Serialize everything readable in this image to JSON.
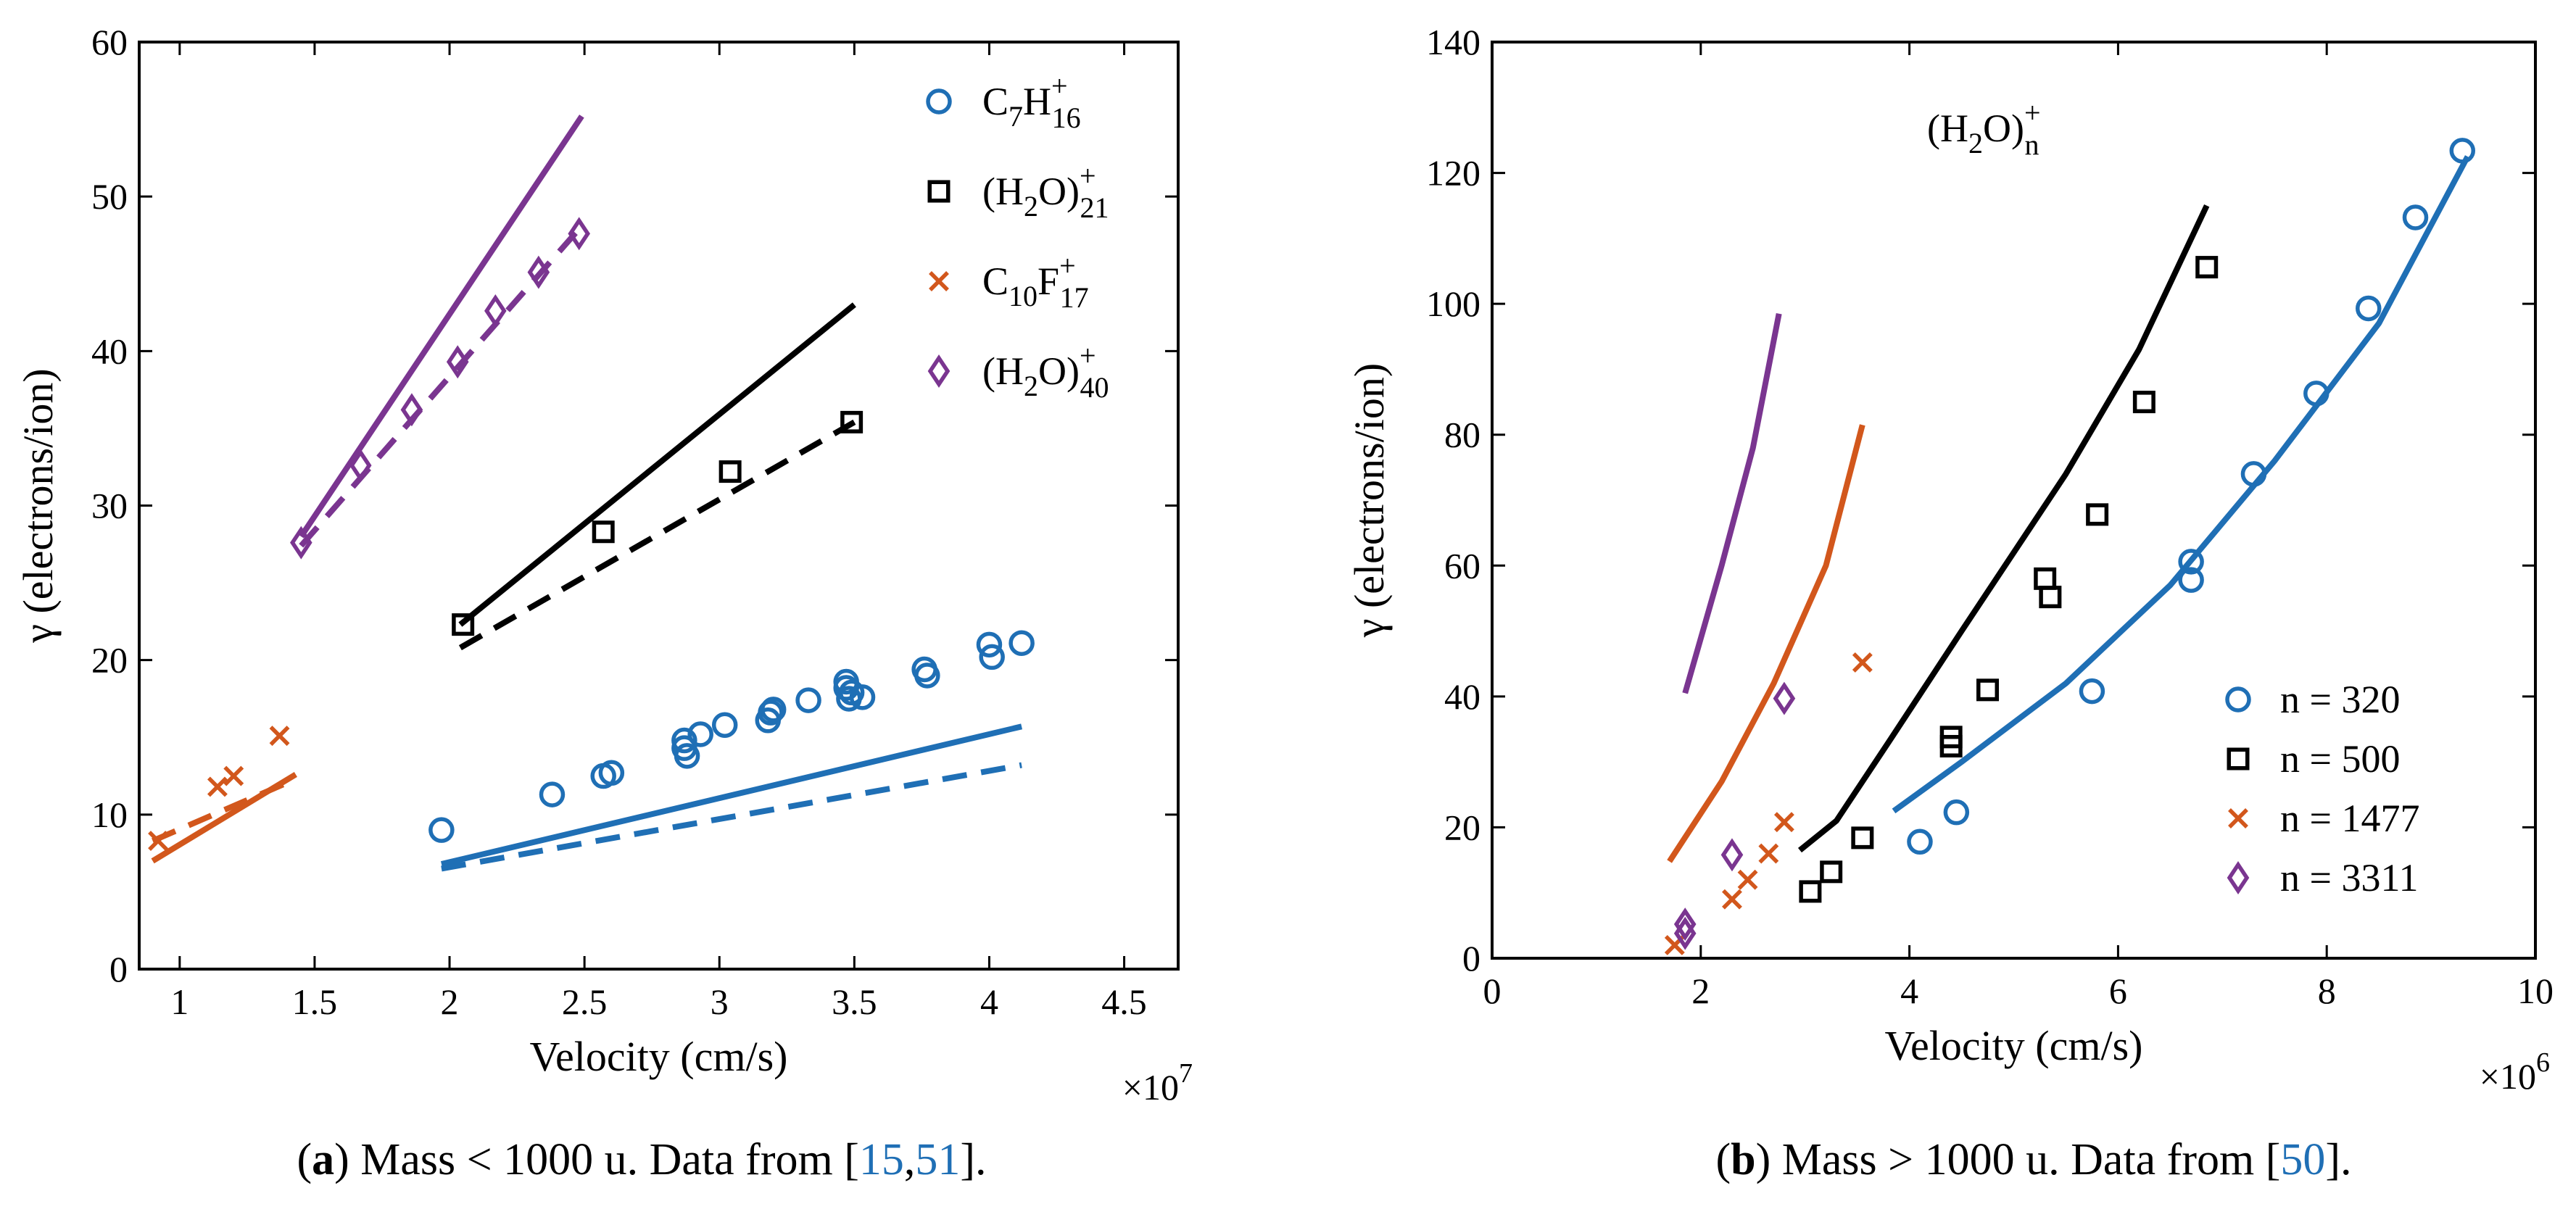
{
  "chart_data": [
    {
      "type": "scatter",
      "xlabel": "Velocity (cm/s)",
      "ylabel": "γ (electrons/ion)",
      "x_multiplier": "×10",
      "x_multiplier_exp": "7",
      "xlim": [
        0.85,
        4.7
      ],
      "ylim": [
        0,
        60
      ],
      "xticks": [
        1,
        1.5,
        2,
        2.5,
        3,
        3.5,
        4,
        4.5
      ],
      "xtick_labels": [
        "1",
        "1.5",
        "2",
        "2.5",
        "3",
        "3.5",
        "4",
        "4.5"
      ],
      "yticks": [
        0,
        10,
        20,
        30,
        40,
        50,
        60
      ],
      "ytick_labels": [
        "0",
        "10",
        "20",
        "30",
        "40",
        "50",
        "60"
      ],
      "caption": {
        "letter": "a",
        "text": " Mass < 1000 u. Data from [",
        "ref1": "15",
        "sep": ",",
        "ref2": "51",
        "end": "]."
      },
      "legend": [
        {
          "base": "C",
          "sub1": "7",
          "mid": "H",
          "sup": "+",
          "sub2": "16",
          "marker": "circle",
          "color": "#1f6fb5"
        },
        {
          "base": "(H",
          "sub1": "2",
          "mid": "O)",
          "sup": "+",
          "sub2": "21",
          "marker": "square",
          "color": "#000000"
        },
        {
          "base": "C",
          "sub1": "10",
          "mid": "F",
          "sup": "+",
          "sub2": "17",
          "marker": "x",
          "color": "#d2571c"
        },
        {
          "base": "(H",
          "sub1": "2",
          "mid": "O)",
          "sup": "+",
          "sub2": "40",
          "marker": "diamond",
          "color": "#7a3590"
        }
      ],
      "series": [
        {
          "name": "C7H16+",
          "marker": "circle",
          "color": "#1f6fb5",
          "points": [
            [
              1.97,
              9.0
            ],
            [
              2.38,
              11.3
            ],
            [
              2.57,
              12.5
            ],
            [
              2.6,
              12.7
            ],
            [
              2.87,
              14.3
            ],
            [
              2.87,
              14.8
            ],
            [
              2.88,
              13.8
            ],
            [
              2.93,
              15.2
            ],
            [
              3.02,
              15.8
            ],
            [
              3.18,
              16.1
            ],
            [
              3.19,
              16.6
            ],
            [
              3.2,
              16.8
            ],
            [
              3.33,
              17.4
            ],
            [
              3.47,
              18.2
            ],
            [
              3.47,
              18.6
            ],
            [
              3.48,
              17.5
            ],
            [
              3.49,
              17.9
            ],
            [
              3.53,
              17.6
            ],
            [
              3.76,
              19.4
            ],
            [
              3.77,
              19.0
            ],
            [
              4.0,
              21.0
            ],
            [
              4.01,
              20.2
            ],
            [
              4.12,
              21.1
            ]
          ]
        },
        {
          "name": "(H2O)21+",
          "marker": "square",
          "color": "#000000",
          "points": [
            [
              2.05,
              22.3
            ],
            [
              2.57,
              28.3
            ],
            [
              3.04,
              32.2
            ],
            [
              3.49,
              35.4
            ]
          ]
        },
        {
          "name": "C10F17+",
          "marker": "x",
          "color": "#d2571c",
          "points": [
            [
              0.92,
              8.3
            ],
            [
              1.14,
              11.8
            ],
            [
              1.2,
              12.5
            ],
            [
              1.37,
              15.1
            ]
          ]
        },
        {
          "name": "(H2O)40+",
          "marker": "diamond",
          "color": "#7a3590",
          "points": [
            [
              1.45,
              27.6
            ],
            [
              1.67,
              32.6
            ],
            [
              1.86,
              36.2
            ],
            [
              2.03,
              39.3
            ],
            [
              2.17,
              42.6
            ],
            [
              2.33,
              45.1
            ],
            [
              2.48,
              47.6
            ]
          ]
        }
      ],
      "lines": [
        {
          "color": "#1f6fb5",
          "dash": false,
          "points": [
            [
              1.97,
              6.8
            ],
            [
              4.12,
              15.7
            ]
          ]
        },
        {
          "color": "#1f6fb5",
          "dash": true,
          "points": [
            [
              1.97,
              6.5
            ],
            [
              4.12,
              13.2
            ]
          ]
        },
        {
          "color": "#000000",
          "dash": false,
          "points": [
            [
              2.04,
              22.3
            ],
            [
              3.5,
              43.0
            ]
          ]
        },
        {
          "color": "#000000",
          "dash": true,
          "points": [
            [
              2.04,
              20.8
            ],
            [
              3.5,
              35.4
            ]
          ]
        },
        {
          "color": "#d2571c",
          "dash": false,
          "points": [
            [
              0.9,
              7.0
            ],
            [
              1.43,
              12.6
            ]
          ]
        },
        {
          "color": "#d2571c",
          "dash": true,
          "points": [
            [
              0.9,
              8.3
            ],
            [
              1.43,
              12.3
            ]
          ]
        },
        {
          "color": "#7a3590",
          "dash": false,
          "points": [
            [
              1.45,
              28.0
            ],
            [
              2.49,
              55.2
            ]
          ]
        },
        {
          "color": "#7a3590",
          "dash": true,
          "points": [
            [
              1.45,
              27.4
            ],
            [
              2.49,
              48.1
            ]
          ]
        }
      ]
    },
    {
      "type": "scatter",
      "xlabel": "Velocity (cm/s)",
      "ylabel": "γ (electrons/ion)",
      "x_multiplier": "×10",
      "x_multiplier_exp": "6",
      "xlim": [
        0,
        10
      ],
      "ylim": [
        0,
        140
      ],
      "xticks": [
        0,
        2,
        4,
        6,
        8,
        10
      ],
      "xtick_labels": [
        "0",
        "2",
        "4",
        "6",
        "8",
        "10"
      ],
      "yticks": [
        0,
        20,
        40,
        60,
        80,
        100,
        120,
        140
      ],
      "ytick_labels": [
        "0",
        "20",
        "40",
        "60",
        "80",
        "100",
        "120",
        "140"
      ],
      "annotation": {
        "base": "(H",
        "sub1": "2",
        "mid": "O)",
        "sup": "+",
        "sub2": "n"
      },
      "caption": {
        "letter": "b",
        "text": " Mass > 1000 u. Data from [",
        "ref1": "50",
        "end": "]."
      },
      "legend": [
        {
          "label": "n = 320",
          "marker": "circle",
          "color": "#1f6fb5"
        },
        {
          "label": "n = 500",
          "marker": "square",
          "color": "#000000"
        },
        {
          "label": "n = 1477",
          "marker": "x",
          "color": "#d2571c"
        },
        {
          "label": "n = 3311",
          "marker": "diamond",
          "color": "#7a3590"
        }
      ],
      "series": [
        {
          "name": "n = 320",
          "marker": "circle",
          "color": "#1f6fb5",
          "points": [
            [
              4.1,
              17.8
            ],
            [
              4.45,
              22.3
            ],
            [
              5.75,
              40.8
            ],
            [
              6.7,
              57.8
            ],
            [
              6.7,
              60.6
            ],
            [
              7.3,
              74.0
            ],
            [
              7.9,
              86.3
            ],
            [
              8.4,
              99.3
            ],
            [
              8.85,
              113.2
            ],
            [
              9.3,
              123.4
            ]
          ]
        },
        {
          "name": "n = 500",
          "marker": "square",
          "color": "#000000",
          "points": [
            [
              3.05,
              10.2
            ],
            [
              3.25,
              13.2
            ],
            [
              3.55,
              18.4
            ],
            [
              4.4,
              32.4
            ],
            [
              4.4,
              33.8
            ],
            [
              4.75,
              41.0
            ],
            [
              5.3,
              58.0
            ],
            [
              5.35,
              55.2
            ],
            [
              5.8,
              67.8
            ],
            [
              6.25,
              85.0
            ],
            [
              6.85,
              105.6
            ]
          ]
        },
        {
          "name": "n = 1477",
          "marker": "x",
          "color": "#d2571c",
          "points": [
            [
              1.75,
              2.0
            ],
            [
              2.3,
              9.0
            ],
            [
              2.45,
              12.0
            ],
            [
              2.65,
              16.0
            ],
            [
              2.8,
              20.8
            ],
            [
              3.55,
              45.2
            ]
          ]
        },
        {
          "name": "n = 3311",
          "marker": "diamond",
          "color": "#7a3590",
          "points": [
            [
              1.85,
              3.8
            ],
            [
              1.85,
              5.2
            ],
            [
              2.3,
              15.8
            ],
            [
              2.8,
              39.7
            ]
          ]
        }
      ],
      "lines": [
        {
          "color": "#1f6fb5",
          "dash": false,
          "points": [
            [
              3.85,
              22.5
            ],
            [
              4.5,
              30.0
            ],
            [
              5.5,
              42.0
            ],
            [
              6.5,
              57.0
            ],
            [
              7.5,
              76.0
            ],
            [
              8.5,
              97.0
            ],
            [
              9.35,
              122.5
            ]
          ]
        },
        {
          "color": "#000000",
          "dash": false,
          "points": [
            [
              2.95,
              16.5
            ],
            [
              3.3,
              21.0
            ],
            [
              3.8,
              33.0
            ],
            [
              4.5,
              50.0
            ],
            [
              5.5,
              74.0
            ],
            [
              6.2,
              93.0
            ],
            [
              6.85,
              115.0
            ]
          ]
        },
        {
          "color": "#d2571c",
          "dash": false,
          "points": [
            [
              1.7,
              14.8
            ],
            [
              2.2,
              27.0
            ],
            [
              2.7,
              42.0
            ],
            [
              3.2,
              60.0
            ],
            [
              3.55,
              81.5
            ]
          ]
        },
        {
          "color": "#7a3590",
          "dash": false,
          "points": [
            [
              1.85,
              40.5
            ],
            [
              2.2,
              60.0
            ],
            [
              2.5,
              78.0
            ],
            [
              2.75,
              98.5
            ]
          ]
        }
      ]
    }
  ]
}
